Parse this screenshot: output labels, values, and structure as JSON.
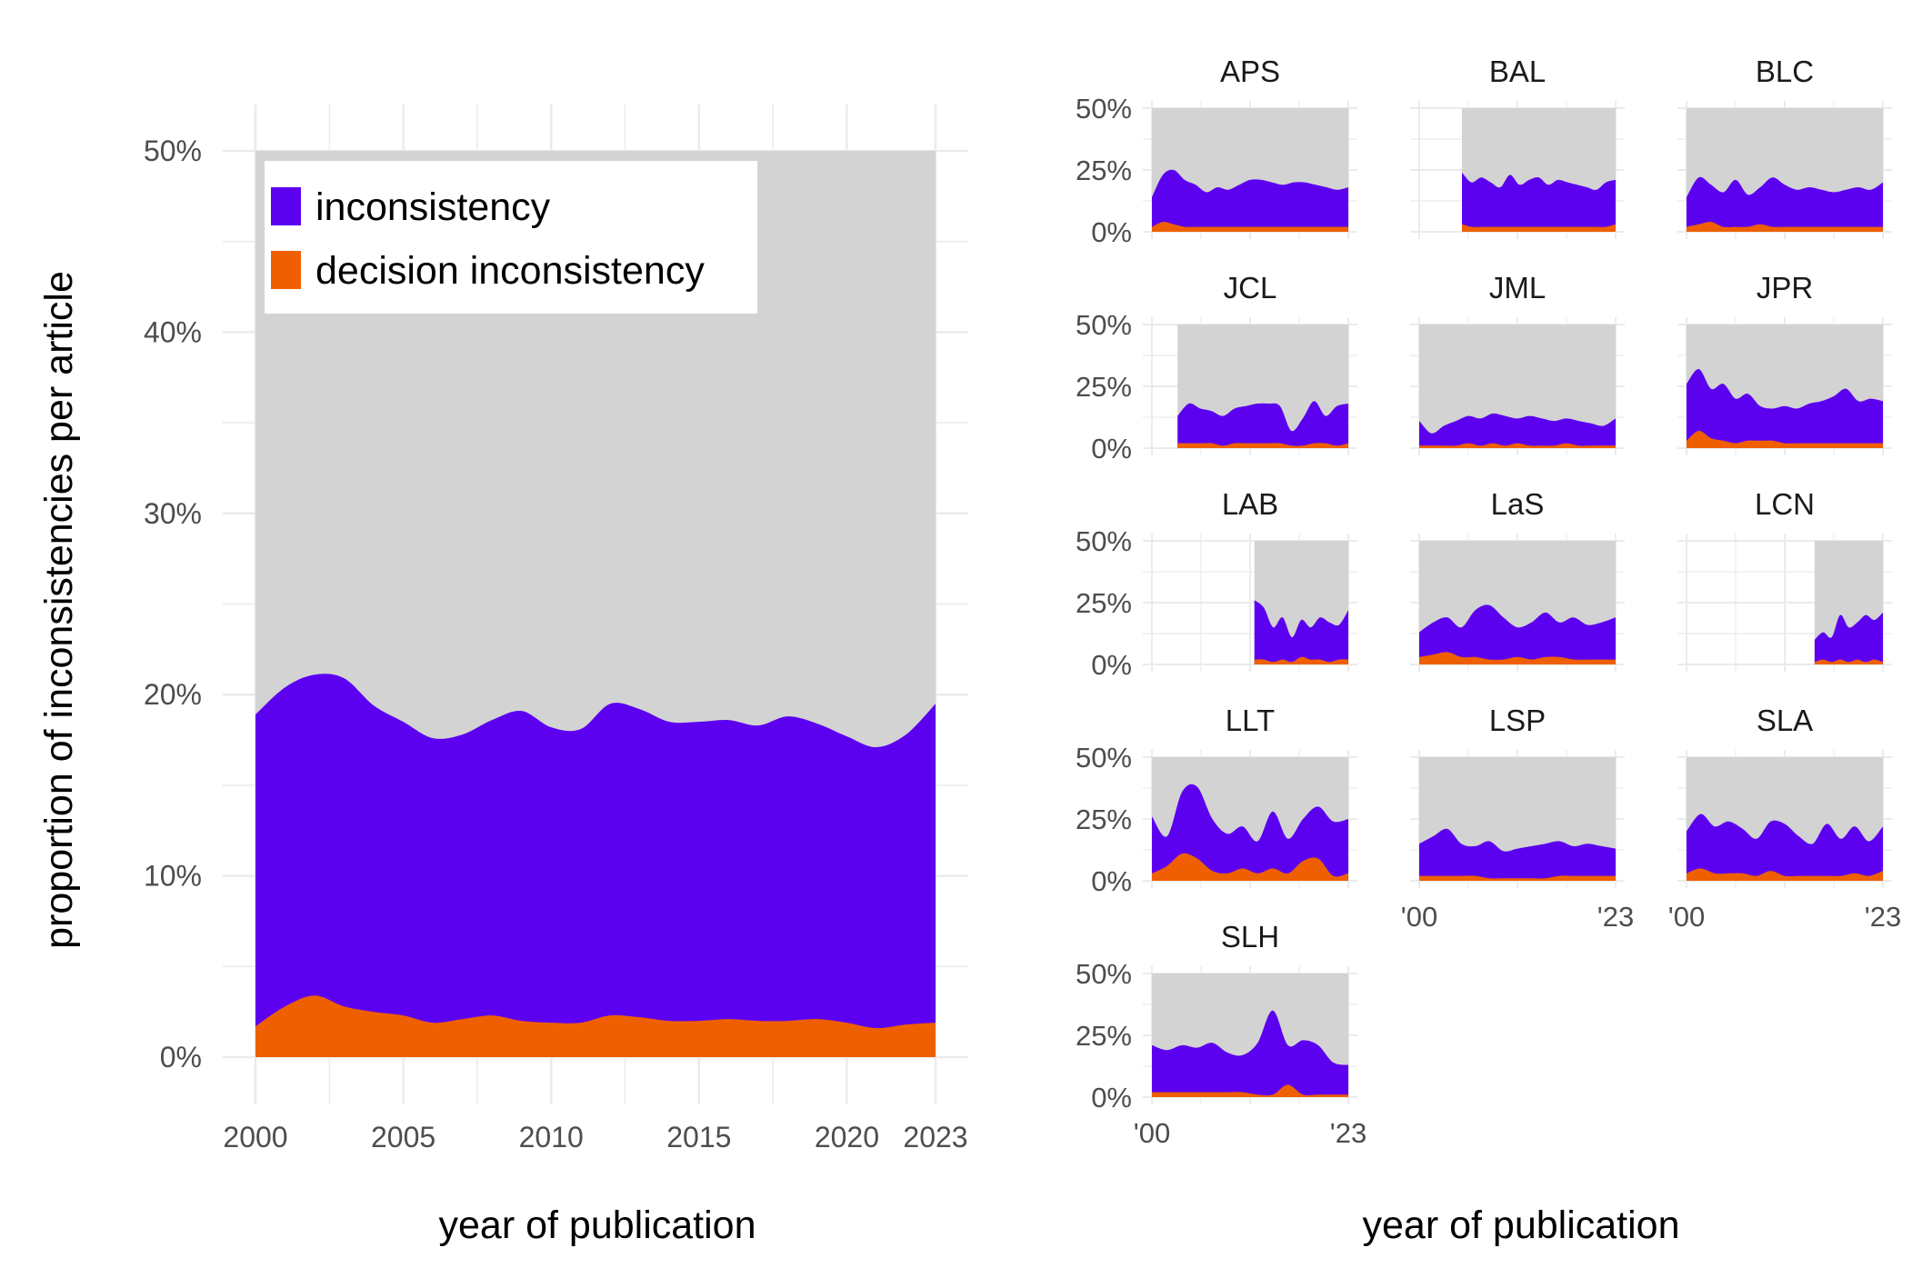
{
  "colors": {
    "background": "#ffffff",
    "panel_fill": "#d3d3d3",
    "inconsistency": "#5c00f0",
    "decision_inconsistency": "#ef5f00",
    "grid": "#ebebeb"
  },
  "main_chart": {
    "xlabel": "year of publication",
    "ylabel": "proportion of inconsistencies per article",
    "x_ticks": [
      "2000",
      "2005",
      "2010",
      "2015",
      "2020",
      "2023"
    ],
    "y_ticks": [
      "0%",
      "10%",
      "20%",
      "30%",
      "40%",
      "50%"
    ],
    "legend": {
      "items": [
        {
          "label": "inconsistency",
          "color": "#5c00f0"
        },
        {
          "label": "decision inconsistency",
          "color": "#ef5f00"
        }
      ]
    }
  },
  "facet_chart": {
    "xlabel": "year of publication",
    "y_ticks": [
      "0%",
      "25%",
      "50%"
    ],
    "x_ticks": [
      "'00",
      "'23"
    ]
  },
  "chart_data": [
    {
      "type": "area",
      "xlabel": "year of publication",
      "ylabel": "proportion of inconsistencies per article",
      "xlim": [
        2000,
        2023
      ],
      "ylim": [
        0,
        50
      ],
      "y_unit": "%",
      "grid": true,
      "legend_position": "top-left",
      "x": [
        2000,
        2001,
        2002,
        2003,
        2004,
        2005,
        2006,
        2007,
        2008,
        2009,
        2010,
        2011,
        2012,
        2013,
        2014,
        2015,
        2016,
        2017,
        2018,
        2019,
        2020,
        2021,
        2022,
        2023
      ],
      "series": [
        {
          "name": "inconsistency",
          "values": [
            18.9,
            20.4,
            21.1,
            20.9,
            19.4,
            18.5,
            17.6,
            17.8,
            18.6,
            19.1,
            18.2,
            18.1,
            19.5,
            19.2,
            18.5,
            18.5,
            18.6,
            18.3,
            18.8,
            18.4,
            17.7,
            17.1,
            17.8,
            19.5
          ]
        },
        {
          "name": "decision inconsistency",
          "values": [
            1.7,
            2.8,
            3.4,
            2.8,
            2.5,
            2.3,
            1.9,
            2.1,
            2.3,
            2.0,
            1.9,
            1.9,
            2.3,
            2.2,
            2.0,
            2.0,
            2.1,
            2.0,
            2.0,
            2.1,
            1.9,
            1.6,
            1.8,
            1.9
          ]
        }
      ]
    },
    {
      "type": "area",
      "xlim": [
        2000,
        2023
      ],
      "ylim": [
        0,
        50
      ],
      "y_unit": "%",
      "facets": [
        {
          "journal": "APS",
          "start": 2000,
          "inconsistency": [
            14,
            23,
            25,
            21,
            19,
            16,
            18,
            17,
            19,
            21,
            21,
            20,
            19,
            20,
            20,
            19,
            18,
            17,
            18
          ],
          "decision": [
            2,
            4,
            3,
            2,
            2,
            2,
            2,
            2,
            2,
            2,
            2,
            2,
            2,
            2,
            2,
            2,
            2,
            2,
            2
          ]
        },
        {
          "journal": "BAL",
          "start": 2005,
          "inconsistency": [
            24,
            20,
            22,
            20,
            18,
            23,
            19,
            21,
            22,
            19,
            21,
            20,
            19,
            18,
            17,
            20,
            21
          ],
          "decision": [
            3,
            2,
            2,
            2,
            2,
            2,
            2,
            2,
            2,
            2,
            2,
            2,
            2,
            2,
            2,
            2,
            3
          ]
        },
        {
          "journal": "BLC",
          "start": 2000,
          "inconsistency": [
            14,
            22,
            19,
            16,
            21,
            15,
            18,
            22,
            19,
            17,
            18,
            17,
            16,
            17,
            18,
            17,
            20
          ],
          "decision": [
            2,
            3,
            4,
            2,
            2,
            2,
            3,
            2,
            2,
            2,
            2,
            2,
            2,
            2,
            2,
            2,
            2
          ]
        },
        {
          "journal": "JCL",
          "start": 2003,
          "inconsistency": [
            13,
            18,
            16,
            15,
            13,
            16,
            17,
            18,
            18,
            17,
            7,
            12,
            19,
            13,
            17,
            18
          ],
          "decision": [
            2,
            2,
            2,
            2,
            1,
            2,
            2,
            2,
            2,
            2,
            1,
            1,
            2,
            2,
            1,
            2
          ]
        },
        {
          "journal": "JML",
          "start": 2000,
          "inconsistency": [
            11,
            6,
            9,
            11,
            13,
            12,
            14,
            13,
            12,
            13,
            12,
            11,
            12,
            11,
            10,
            9,
            12
          ],
          "decision": [
            1,
            1,
            1,
            1,
            2,
            1,
            2,
            1,
            2,
            1,
            1,
            1,
            2,
            1,
            1,
            1,
            1
          ]
        },
        {
          "journal": "JPR",
          "start": 2000,
          "inconsistency": [
            26,
            32,
            24,
            26,
            20,
            22,
            17,
            16,
            17,
            16,
            18,
            19,
            21,
            24,
            19,
            20,
            19
          ],
          "decision": [
            3,
            7,
            4,
            3,
            2,
            3,
            3,
            3,
            2,
            2,
            2,
            2,
            2,
            2,
            2,
            2,
            2
          ]
        },
        {
          "journal": "LAB",
          "start": 2012,
          "inconsistency": [
            26,
            23,
            15,
            19,
            11,
            18,
            15,
            19,
            17,
            16,
            22
          ],
          "decision": [
            2,
            2,
            1,
            2,
            1,
            3,
            2,
            2,
            1,
            2,
            2
          ]
        },
        {
          "journal": "LaS",
          "start": 2000,
          "inconsistency": [
            13,
            17,
            19,
            15,
            22,
            24,
            19,
            15,
            17,
            21,
            17,
            19,
            16,
            17,
            19
          ],
          "decision": [
            3,
            4,
            5,
            3,
            3,
            2,
            2,
            3,
            2,
            3,
            3,
            2,
            2,
            2,
            2
          ]
        },
        {
          "journal": "LCN",
          "start": 2015,
          "inconsistency": [
            10,
            13,
            11,
            20,
            15,
            17,
            20,
            18,
            21
          ],
          "decision": [
            1,
            2,
            1,
            2,
            1,
            2,
            1,
            2,
            1
          ]
        },
        {
          "journal": "LLT",
          "start": 2000,
          "inconsistency": [
            26,
            18,
            36,
            38,
            25,
            19,
            22,
            16,
            28,
            17,
            25,
            30,
            24,
            25
          ],
          "decision": [
            3,
            6,
            11,
            9,
            4,
            3,
            5,
            3,
            5,
            3,
            8,
            9,
            2,
            3
          ]
        },
        {
          "journal": "LSP",
          "start": 2000,
          "inconsistency": [
            15,
            18,
            21,
            15,
            14,
            16,
            12,
            13,
            14,
            15,
            16,
            14,
            15,
            14,
            13
          ],
          "decision": [
            2,
            2,
            2,
            2,
            2,
            1,
            1,
            1,
            1,
            1,
            2,
            2,
            2,
            2,
            2
          ]
        },
        {
          "journal": "SLA",
          "start": 2000,
          "inconsistency": [
            20,
            27,
            22,
            24,
            21,
            17,
            24,
            23,
            18,
            15,
            23,
            17,
            22,
            16,
            22
          ],
          "decision": [
            3,
            5,
            3,
            3,
            3,
            2,
            4,
            2,
            2,
            2,
            2,
            2,
            3,
            2,
            4
          ]
        },
        {
          "journal": "SLH",
          "start": 2000,
          "inconsistency": [
            21,
            19,
            21,
            20,
            22,
            18,
            17,
            22,
            35,
            21,
            23,
            21,
            14,
            13
          ],
          "decision": [
            2,
            2,
            2,
            2,
            2,
            2,
            2,
            1,
            1,
            5,
            1,
            1,
            1,
            1
          ]
        }
      ]
    }
  ]
}
